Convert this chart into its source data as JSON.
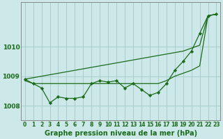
{
  "title": "Graphe pression niveau de la mer (hPa)",
  "background_color": "#cce8e8",
  "grid_color": "#a8cccc",
  "line_color": "#1a6b1a",
  "x_labels": [
    "0",
    "1",
    "2",
    "3",
    "4",
    "5",
    "6",
    "7",
    "8",
    "9",
    "10",
    "11",
    "12",
    "13",
    "14",
    "15",
    "16",
    "17",
    "18",
    "19",
    "20",
    "21",
    "22",
    "23"
  ],
  "ylim": [
    1007.5,
    1011.5
  ],
  "yticks": [
    1008,
    1009,
    1010
  ],
  "series_zigzag": [
    1008.9,
    1008.75,
    1008.6,
    1008.1,
    1008.3,
    1008.25,
    1008.25,
    1008.3,
    1008.75,
    1008.85,
    1008.8,
    1008.85,
    1008.6,
    1008.75,
    1008.55,
    1008.35,
    1008.45,
    1008.75,
    1009.2,
    1009.5,
    1009.85,
    1010.45,
    1011.05,
    1011.1
  ],
  "series_flat": [
    1008.85,
    1008.75,
    1008.75,
    1008.75,
    1008.75,
    1008.75,
    1008.75,
    1008.75,
    1008.75,
    1008.75,
    1008.75,
    1008.75,
    1008.75,
    1008.75,
    1008.75,
    1008.75,
    1008.75,
    1008.85,
    1009.0,
    1009.1,
    1009.2,
    1009.35,
    1011.05,
    1011.1
  ],
  "series_diagonal": [
    1008.9,
    1008.95,
    1009.0,
    1009.05,
    1009.1,
    1009.15,
    1009.2,
    1009.25,
    1009.3,
    1009.35,
    1009.4,
    1009.45,
    1009.5,
    1009.55,
    1009.6,
    1009.65,
    1009.7,
    1009.75,
    1009.8,
    1009.85,
    1009.95,
    1010.05,
    1011.05,
    1011.1
  ],
  "ylabel_fontsize": 6.5,
  "xlabel_fontsize": 7.0,
  "tick_fontsize": 5.5
}
